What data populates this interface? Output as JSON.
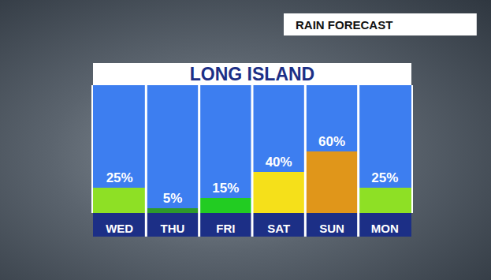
{
  "chart_data": {
    "type": "bar",
    "title": "LONG ISLAND",
    "subtitle": "RAIN FORECAST",
    "categories": [
      "WED",
      "THU",
      "FRI",
      "SAT",
      "SUN",
      "MON"
    ],
    "values": [
      25,
      5,
      15,
      40,
      60,
      25
    ],
    "value_labels": [
      "25%",
      "5%",
      "15%",
      "40%",
      "60%",
      "25%"
    ],
    "colors": [
      "#8ee025",
      "#2e9a2a",
      "#22cc22",
      "#f5e01a",
      "#e0961a",
      "#8ee025"
    ],
    "data_labels": true,
    "ylim": [
      0,
      125
    ],
    "yticks": [],
    "grid": false,
    "tick_labels": "x"
  }
}
